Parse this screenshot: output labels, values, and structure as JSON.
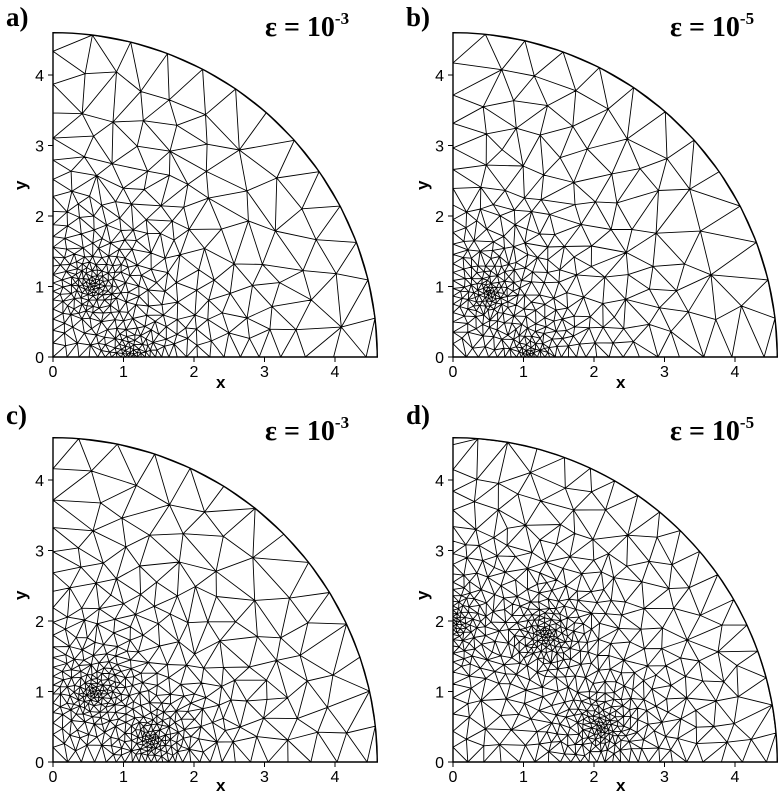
{
  "panels": [
    {
      "id": "a",
      "letter": "a)",
      "eps_base": "ε = 10",
      "eps_exp": "-3",
      "xlabel": "x",
      "ylabel": "y",
      "xticks": [
        "0",
        "1",
        "2",
        "3",
        "4"
      ],
      "yticks": [
        "0",
        "1",
        "2",
        "3",
        "4"
      ],
      "refinement_centers": [
        [
          0.55,
          1.0
        ],
        [
          1.1,
          0.0
        ]
      ]
    },
    {
      "id": "b",
      "letter": "b)",
      "eps_base": "ε = 10",
      "eps_exp": "-5",
      "xlabel": "x",
      "ylabel": "y",
      "xticks": [
        "0",
        "1",
        "2",
        "3",
        "4"
      ],
      "yticks": [
        "0",
        "1",
        "2",
        "3",
        "4"
      ],
      "refinement_centers": [
        [
          0.5,
          0.9
        ],
        [
          1.1,
          0.0
        ]
      ]
    },
    {
      "id": "c",
      "letter": "c)",
      "eps_base": "ε = 10",
      "eps_exp": "-3",
      "xlabel": "x",
      "ylabel": "y",
      "xticks": [
        "0",
        "1",
        "2",
        "3",
        "4"
      ],
      "yticks": [
        "0",
        "1",
        "2",
        "3",
        "4"
      ],
      "refinement_centers": [
        [
          0.6,
          1.0
        ],
        [
          1.4,
          0.3
        ]
      ]
    },
    {
      "id": "d",
      "letter": "d)",
      "eps_base": "ε = 10",
      "eps_exp": "-5",
      "xlabel": "x",
      "ylabel": "y",
      "xticks": [
        "0",
        "1",
        "2",
        "3",
        "4"
      ],
      "yticks": [
        "0",
        "1",
        "2",
        "3",
        "4"
      ],
      "refinement_centers": [
        [
          1.3,
          1.8
        ],
        [
          2.1,
          0.5
        ],
        [
          0.0,
          2.0
        ]
      ]
    }
  ],
  "domain": {
    "shape": "quarter-circle",
    "radius": 4.6,
    "axis_max": 4.6
  }
}
